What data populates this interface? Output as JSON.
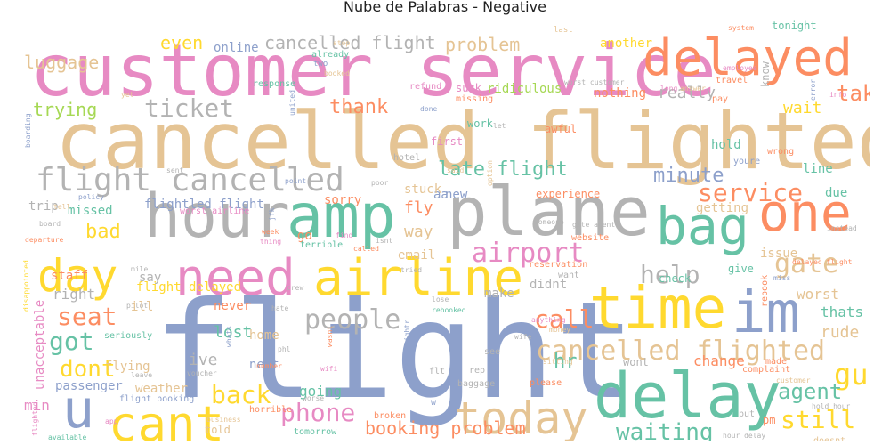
{
  "title": "Nube de Palabras - Negative",
  "palette": {
    "tan": "#e5c494",
    "pink": "#e78ac3",
    "orange": "#fc8d62",
    "teal": "#66c2a5",
    "blue": "#8da0cb",
    "yellow": "#ffd92f",
    "green": "#a6d854",
    "gray": "#b3b3b3"
  },
  "words": [
    {
      "text": "flight",
      "color": "blue"
    },
    {
      "text": "cancelled flighted",
      "color": "tan"
    },
    {
      "text": "customer service",
      "color": "pink"
    },
    {
      "text": "delay",
      "color": "teal"
    },
    {
      "text": "delayed",
      "color": "orange"
    },
    {
      "text": "hour",
      "color": "gray"
    },
    {
      "text": "plane",
      "color": "gray"
    },
    {
      "text": "amp",
      "color": "teal"
    },
    {
      "text": "time",
      "color": "yellow"
    },
    {
      "text": "im",
      "color": "blue"
    },
    {
      "text": "airline",
      "color": "yellow"
    },
    {
      "text": "need",
      "color": "pink"
    },
    {
      "text": "day",
      "color": "yellow"
    },
    {
      "text": "bag",
      "color": "teal"
    },
    {
      "text": "one",
      "color": "orange"
    },
    {
      "text": "cant",
      "color": "yellow"
    },
    {
      "text": "u",
      "color": "blue"
    },
    {
      "text": "today",
      "color": "tan"
    },
    {
      "text": "flight cancelled",
      "color": "gray"
    },
    {
      "text": "cancelled flighted",
      "color": "tan"
    },
    {
      "text": "airport",
      "color": "pink"
    },
    {
      "text": "people",
      "color": "gray"
    },
    {
      "text": "ticket",
      "color": "gray"
    },
    {
      "text": "service",
      "color": "orange"
    },
    {
      "text": "guy",
      "color": "yellow"
    },
    {
      "text": "gate",
      "color": "tan"
    },
    {
      "text": "help",
      "color": "gray"
    },
    {
      "text": "call",
      "color": "orange"
    },
    {
      "text": "waiting",
      "color": "teal"
    },
    {
      "text": "phone",
      "color": "pink"
    },
    {
      "text": "back",
      "color": "yellow"
    },
    {
      "text": "seat",
      "color": "orange"
    },
    {
      "text": "got",
      "color": "teal"
    },
    {
      "text": "dont",
      "color": "yellow"
    },
    {
      "text": "still",
      "color": "yellow"
    },
    {
      "text": "agent",
      "color": "teal"
    },
    {
      "text": "booking problem",
      "color": "orange"
    },
    {
      "text": "take",
      "color": "orange"
    },
    {
      "text": "thank",
      "color": "orange"
    },
    {
      "text": "late flight",
      "color": "teal"
    },
    {
      "text": "minute",
      "color": "blue"
    },
    {
      "text": "cancelled flight",
      "color": "gray"
    },
    {
      "text": "problem",
      "color": "tan"
    },
    {
      "text": "luggage",
      "color": "tan"
    },
    {
      "text": "even",
      "color": "yellow"
    },
    {
      "text": "online",
      "color": "blue"
    },
    {
      "text": "trying",
      "color": "green"
    },
    {
      "text": "bad",
      "color": "yellow"
    },
    {
      "text": "really",
      "color": "gray"
    },
    {
      "text": "wait",
      "color": "yellow"
    },
    {
      "text": "lost",
      "color": "teal"
    },
    {
      "text": "hr",
      "color": "teal"
    },
    {
      "text": "way",
      "color": "tan"
    },
    {
      "text": "fly",
      "color": "orange"
    },
    {
      "text": "flightled flight",
      "color": "blue"
    },
    {
      "text": "flight delayed",
      "color": "yellow"
    },
    {
      "text": "ive",
      "color": "gray"
    },
    {
      "text": "going",
      "color": "teal"
    },
    {
      "text": "rude",
      "color": "tan"
    },
    {
      "text": "change",
      "color": "orange"
    },
    {
      "text": "worst",
      "color": "tan"
    },
    {
      "text": "thats",
      "color": "teal"
    },
    {
      "text": "issue",
      "color": "tan"
    },
    {
      "text": "right",
      "color": "gray"
    },
    {
      "text": "min",
      "color": "pink"
    },
    {
      "text": "unacceptable",
      "color": "pink"
    },
    {
      "text": "another",
      "color": "yellow"
    },
    {
      "text": "hold",
      "color": "teal"
    },
    {
      "text": "line",
      "color": "teal"
    },
    {
      "text": "due",
      "color": "teal"
    },
    {
      "text": "getting",
      "color": "tan"
    },
    {
      "text": "new",
      "color": "blue"
    },
    {
      "text": "aa",
      "color": "blue"
    },
    {
      "text": "experience",
      "color": "orange"
    },
    {
      "text": "sorry",
      "color": "orange"
    },
    {
      "text": "stuck",
      "color": "tan"
    },
    {
      "text": "trip",
      "color": "gray"
    },
    {
      "text": "missed",
      "color": "teal"
    },
    {
      "text": "staff",
      "color": "orange"
    },
    {
      "text": "say",
      "color": "gray"
    },
    {
      "text": "ill",
      "color": "tan"
    },
    {
      "text": "never",
      "color": "orange"
    },
    {
      "text": "home",
      "color": "tan"
    },
    {
      "text": "next",
      "color": "blue"
    },
    {
      "text": "flying",
      "color": "tan"
    },
    {
      "text": "passenger",
      "color": "blue"
    },
    {
      "text": "weather",
      "color": "tan"
    },
    {
      "text": "make",
      "color": "gray"
    },
    {
      "text": "email",
      "color": "tan"
    },
    {
      "text": "go",
      "color": "orange"
    },
    {
      "text": "didnt",
      "color": "gray"
    },
    {
      "text": "work",
      "color": "teal"
    },
    {
      "text": "first",
      "color": "pink"
    },
    {
      "text": "ridiculous",
      "color": "green"
    },
    {
      "text": "suck",
      "color": "pink"
    },
    {
      "text": "nothing",
      "color": "orange"
    },
    {
      "text": "know",
      "color": "gray"
    },
    {
      "text": "tonight",
      "color": "teal"
    },
    {
      "text": "check",
      "color": "teal"
    },
    {
      "text": "wont",
      "color": "gray"
    },
    {
      "text": "told",
      "color": "tan"
    },
    {
      "text": "tomorrow",
      "color": "teal"
    },
    {
      "text": "pm",
      "color": "orange"
    },
    {
      "text": "give",
      "color": "teal"
    },
    {
      "text": "miss",
      "color": "blue"
    },
    {
      "text": "rebook",
      "color": "orange"
    },
    {
      "text": "made",
      "color": "orange"
    },
    {
      "text": "complaint",
      "color": "orange"
    },
    {
      "text": "please",
      "color": "orange"
    },
    {
      "text": "hotel",
      "color": "gray"
    },
    {
      "text": "youre",
      "color": "blue"
    },
    {
      "text": "wrong",
      "color": "orange"
    },
    {
      "text": "awful",
      "color": "orange"
    },
    {
      "text": "let",
      "color": "gray"
    },
    {
      "text": "done",
      "color": "blue"
    },
    {
      "text": "missing",
      "color": "orange"
    },
    {
      "text": "refund",
      "color": "pink"
    },
    {
      "text": "worst customer",
      "color": "gray"
    },
    {
      "text": "response",
      "color": "teal"
    },
    {
      "text": "already",
      "color": "teal"
    },
    {
      "text": "two",
      "color": "blue"
    },
    {
      "text": "booked",
      "color": "tan"
    },
    {
      "text": "stop",
      "color": "tan"
    },
    {
      "text": "last",
      "color": "tan"
    },
    {
      "text": "system",
      "color": "orange"
    },
    {
      "text": "employee",
      "color": "pink"
    },
    {
      "text": "travel",
      "color": "orange"
    },
    {
      "text": "pay",
      "color": "orange"
    },
    {
      "text": "long",
      "color": "pink"
    },
    {
      "text": "answer",
      "color": "tan"
    },
    {
      "text": "info",
      "color": "pink"
    },
    {
      "text": "error",
      "color": "blue"
    },
    {
      "text": "yet",
      "color": "tan"
    },
    {
      "text": "united",
      "color": "blue"
    },
    {
      "text": "boarding",
      "color": "blue"
    },
    {
      "text": "sent",
      "color": "gray"
    },
    {
      "text": "policy",
      "color": "blue"
    },
    {
      "text": "worst airline",
      "color": "pink"
    },
    {
      "text": "point",
      "color": "blue"
    },
    {
      "text": "said",
      "color": "tan"
    },
    {
      "text": "poor",
      "color": "gray"
    },
    {
      "text": "option",
      "color": "tan"
    },
    {
      "text": "someone",
      "color": "gray"
    },
    {
      "text": "gate agent",
      "color": "gray"
    },
    {
      "text": "instead",
      "color": "gray"
    },
    {
      "text": "delayed flight",
      "color": "orange"
    },
    {
      "text": "reservation",
      "color": "orange"
    },
    {
      "text": "website",
      "color": "orange"
    },
    {
      "text": "want",
      "color": "gray"
    },
    {
      "text": "jfk",
      "color": "blue"
    },
    {
      "text": "week",
      "color": "orange"
    },
    {
      "text": "terrible",
      "color": "teal"
    },
    {
      "text": "thing",
      "color": "pink"
    },
    {
      "text": "find",
      "color": "pink"
    },
    {
      "text": "called",
      "color": "orange"
    },
    {
      "text": "isnt",
      "color": "gray"
    },
    {
      "text": "tried",
      "color": "gray"
    },
    {
      "text": "board",
      "color": "gray"
    },
    {
      "text": "departure",
      "color": "orange"
    },
    {
      "text": "disappointed",
      "color": "yellow"
    },
    {
      "text": "tell",
      "color": "tan"
    },
    {
      "text": "mile",
      "color": "gray"
    },
    {
      "text": "pilot",
      "color": "gray"
    },
    {
      "text": "crew",
      "color": "gray"
    },
    {
      "text": "hate",
      "color": "gray"
    },
    {
      "text": "lose",
      "color": "gray"
    },
    {
      "text": "rebooked",
      "color": "teal"
    },
    {
      "text": "late flightr",
      "color": "blue"
    },
    {
      "text": "anything",
      "color": "pink"
    },
    {
      "text": "wife",
      "color": "gray"
    },
    {
      "text": "money",
      "color": "tan"
    },
    {
      "text": "sitting",
      "color": "tan"
    },
    {
      "text": "phl",
      "color": "gray"
    },
    {
      "text": "wasnt",
      "color": "orange"
    },
    {
      "text": "whats",
      "color": "blue"
    },
    {
      "text": "seriously",
      "color": "teal"
    },
    {
      "text": "number",
      "color": "orange"
    },
    {
      "text": "wifi",
      "color": "pink"
    },
    {
      "text": "voucher",
      "color": "gray"
    },
    {
      "text": "leave",
      "color": "gray"
    },
    {
      "text": "flight booking",
      "color": "blue"
    },
    {
      "text": "worse",
      "color": "gray"
    },
    {
      "text": "horrible",
      "color": "orange"
    },
    {
      "text": "business",
      "color": "tan"
    },
    {
      "text": "available",
      "color": "teal"
    },
    {
      "text": "app",
      "color": "pink"
    },
    {
      "text": "flt",
      "color": "gray"
    },
    {
      "text": "rep",
      "color": "gray"
    },
    {
      "text": "baggage",
      "color": "gray"
    },
    {
      "text": "broken",
      "color": "orange"
    },
    {
      "text": "see",
      "color": "gray"
    },
    {
      "text": "put",
      "color": "gray"
    },
    {
      "text": "hold hour",
      "color": "gray"
    },
    {
      "text": "hour delay",
      "color": "gray"
    },
    {
      "text": "doesnt",
      "color": "tan"
    },
    {
      "text": "customer",
      "color": "tan"
    },
    {
      "text": "w",
      "color": "blue"
    },
    {
      "text": "flighted",
      "color": "pink"
    }
  ]
}
